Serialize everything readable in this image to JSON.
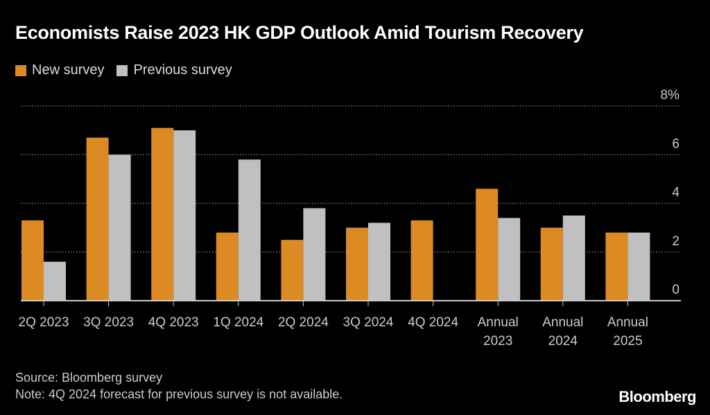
{
  "title": "Economists Raise 2023 HK GDP Outlook Amid Tourism Recovery",
  "chart_data": {
    "type": "bar",
    "title": "Economists Raise 2023 HK GDP Outlook Amid Tourism Recovery",
    "categories": [
      [
        "2Q 2023"
      ],
      [
        "3Q 2023"
      ],
      [
        "4Q 2023"
      ],
      [
        "1Q 2024"
      ],
      [
        "2Q 2024"
      ],
      [
        "3Q 2024"
      ],
      [
        "4Q 2024"
      ],
      [
        "Annual",
        "2023"
      ],
      [
        "Annual",
        "2024"
      ],
      [
        "Annual",
        "2025"
      ]
    ],
    "series": [
      {
        "name": "New survey",
        "color": "#dc8a24",
        "values": [
          3.3,
          6.7,
          7.1,
          2.8,
          2.5,
          3.0,
          3.3,
          4.6,
          3.0,
          2.8
        ]
      },
      {
        "name": "Previous survey",
        "color": "#c0c0c0",
        "values": [
          1.6,
          6.0,
          7.0,
          5.8,
          3.8,
          3.2,
          null,
          3.4,
          3.5,
          2.8
        ]
      }
    ],
    "ylim": [
      0,
      8
    ],
    "yticks": [
      0,
      2,
      4,
      6,
      8
    ],
    "ytick_labels": [
      "0",
      "2",
      "4",
      "6",
      "8%"
    ],
    "grid": true,
    "legend": "top-left",
    "xlabel": "",
    "ylabel": ""
  },
  "footer": {
    "source": "Source: Bloomberg survey",
    "note": "Note: 4Q 2024 forecast for previous survey is not available."
  },
  "logo": "Bloomberg"
}
